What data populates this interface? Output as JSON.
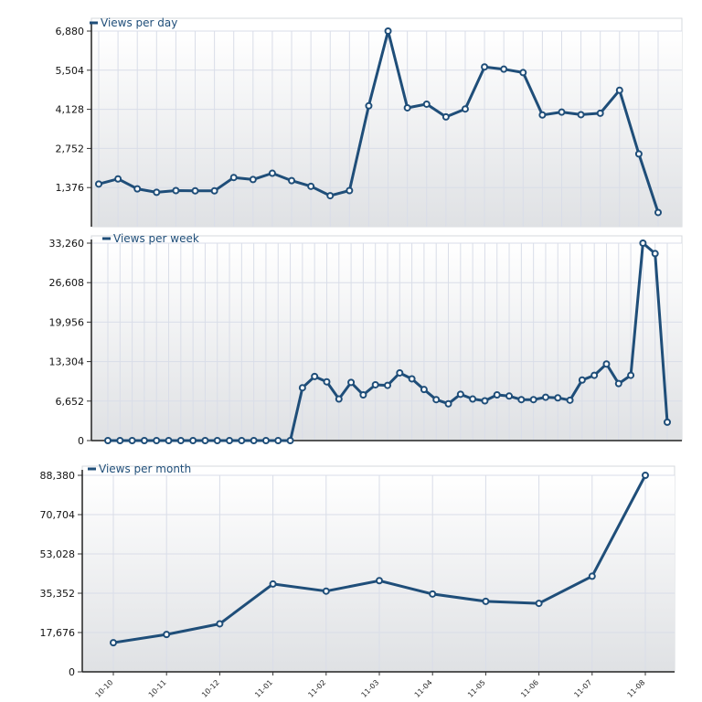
{
  "colors": {
    "series": "#1f4e79",
    "plot_top": "#ffffff",
    "plot_bottom": "#dfe1e4",
    "grid": "#d9dde8"
  },
  "chart_data": [
    {
      "type": "line",
      "legend": "Views per day",
      "legend_position": "top-left",
      "grid": true,
      "ylim": [
        0,
        6880
      ],
      "yticks": [
        "6,880",
        "5,504",
        "4,128",
        "2,752",
        "1,376"
      ],
      "ytick_values": [
        6880,
        5504,
        4128,
        2752,
        1376
      ],
      "values": [
        1500,
        1680,
        1330,
        1210,
        1270,
        1260,
        1260,
        1730,
        1660,
        1880,
        1620,
        1420,
        1090,
        1270,
        4250,
        6880,
        4180,
        4310,
        3860,
        4140,
        5620,
        5540,
        5420,
        3930,
        4030,
        3940,
        3990,
        4800,
        2560,
        500
      ]
    },
    {
      "type": "line",
      "legend": "Views per week",
      "legend_position": "top-left",
      "grid": true,
      "ylim": [
        0,
        33260
      ],
      "yticks": [
        "33,260",
        "26,608",
        "19,956",
        "13,304",
        "6,652",
        "0"
      ],
      "ytick_values": [
        33260,
        26608,
        19956,
        13304,
        6652,
        0
      ],
      "values": [
        0,
        0,
        0,
        0,
        0,
        0,
        0,
        0,
        0,
        0,
        0,
        0,
        0,
        0,
        0,
        0,
        8900,
        10800,
        9900,
        7000,
        9800,
        7700,
        9400,
        9300,
        11400,
        10400,
        8600,
        6900,
        6200,
        7800,
        7000,
        6700,
        7700,
        7500,
        6900,
        6900,
        7300,
        7200,
        6800,
        10200,
        11000,
        12900,
        9600,
        11000,
        33260,
        31500,
        3100
      ]
    },
    {
      "type": "line",
      "legend": "Views per month",
      "legend_position": "top-left",
      "grid": true,
      "ylim": [
        0,
        88380
      ],
      "yticks": [
        "88,380",
        "70,704",
        "53,028",
        "35,352",
        "17,676",
        "0"
      ],
      "ytick_values": [
        88380,
        70704,
        53028,
        35352,
        17676,
        0
      ],
      "categories": [
        "10-10",
        "10-11",
        "10-12",
        "11-01",
        "11-02",
        "11-03",
        "11-04",
        "11-05",
        "11-06",
        "11-07",
        "11-08"
      ],
      "values": [
        13100,
        16800,
        21600,
        39500,
        36300,
        41000,
        35000,
        31700,
        30800,
        43000,
        88380
      ]
    }
  ]
}
